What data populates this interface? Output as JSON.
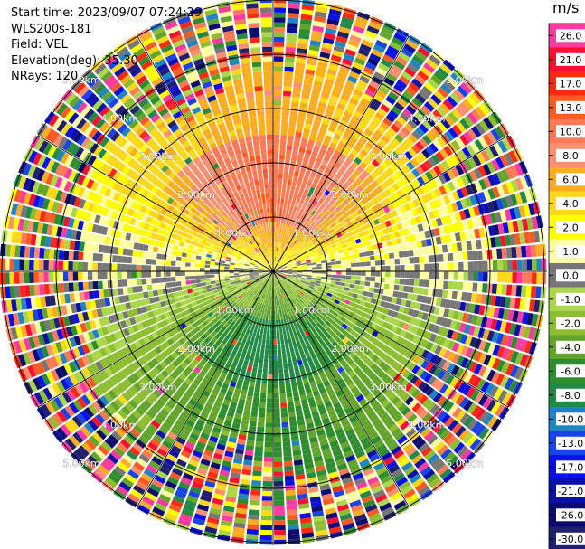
{
  "header": {
    "start_time": "Start time: 2023/09/07 07:24:29",
    "instrument": "WLS200s-181",
    "field": "Field: VEL",
    "elevation": "Elevation(deg): 35.30",
    "nrays": "NRays: 120"
  },
  "colorbar": {
    "unit": "m/s",
    "ticks": [
      "26.0",
      "21.0",
      "17.0",
      "13.0",
      "10.0",
      "8.0",
      "6.0",
      "4.0",
      "2.0",
      "1.0",
      "0.0",
      "-1.0",
      "-2.0",
      "-4.0",
      "-6.0",
      "-8.0",
      "-10.0",
      "-13.0",
      "-17.0",
      "-21.0",
      "-26.0",
      "-30.0"
    ],
    "colors": [
      "#ff3aa0",
      "#ff1030",
      "#ff2a10",
      "#ff5a24",
      "#ff7a55",
      "#ff8f70",
      "#ffad20",
      "#ffd81a",
      "#ffff00",
      "#ffffa0",
      "#777777",
      "#aad64b",
      "#8dbd30",
      "#62a52a",
      "#2e8e2e",
      "#228a48",
      "#1f83c4",
      "#1a44e8",
      "#0a10e8",
      "#0a10a8",
      "#0c0c70",
      "#20206e"
    ]
  },
  "chart_data": {
    "type": "heatmap",
    "projection": "polar-ppi",
    "title": "",
    "field": "VEL",
    "units": "m/s",
    "nrays": 120,
    "rings_km": [
      1.0,
      2.0,
      3.0,
      4.0,
      5.0
    ],
    "ring_labels": [
      "1.00km",
      "2.00km",
      "3.00km",
      "4.00km",
      "5.00km"
    ],
    "value_range": [
      -30.0,
      26.0
    ],
    "sectors": [
      {
        "direction": "north",
        "range_km": [
          0.0,
          1.0
        ],
        "velocity_ms": 1.0
      },
      {
        "direction": "north",
        "range_km": [
          1.0,
          2.5
        ],
        "velocity_ms": 8.0
      },
      {
        "direction": "north",
        "range_km": [
          2.5,
          3.5
        ],
        "velocity_ms": 4.0
      },
      {
        "direction": "east-west",
        "range_km": [
          0.0,
          2.5
        ],
        "velocity_ms": 0.0
      },
      {
        "direction": "south",
        "range_km": [
          0.0,
          1.0
        ],
        "velocity_ms": -4.0
      },
      {
        "direction": "south",
        "range_km": [
          1.0,
          2.0
        ],
        "velocity_ms": -8.0
      },
      {
        "direction": "south",
        "range_km": [
          2.0,
          3.5
        ],
        "velocity_ms": -6.0
      }
    ],
    "noise_beyond_km": 3.6,
    "grid": true
  }
}
